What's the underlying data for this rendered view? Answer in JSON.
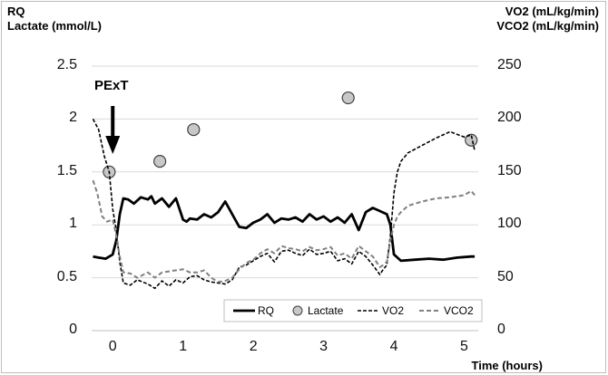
{
  "chart_data": {
    "type": "line",
    "left_axis_label_lines": [
      "RQ",
      "Lactate (mmol/L)"
    ],
    "right_axis_label_lines": [
      "VO2 (mL/kg/min)",
      "VCO2 (mL/kg/min)"
    ],
    "xlabel": "Time (hours)",
    "annotation": "PExT",
    "annotation_x": 0,
    "xlim": [
      -0.3,
      5.2
    ],
    "ylim_left": [
      0,
      2.5
    ],
    "ylim_right": [
      0,
      250
    ],
    "x_ticks": [
      "0",
      "1",
      "2",
      "3",
      "4",
      "5"
    ],
    "y_left_ticks": [
      "0",
      "0.5",
      "1",
      "1.5",
      "2",
      "2.5"
    ],
    "y_right_ticks": [
      "0",
      "50",
      "100",
      "150",
      "200",
      "250"
    ],
    "grid": "horizontal",
    "legend": "bottom-right",
    "series": [
      {
        "name": "RQ",
        "axis": "left",
        "style": "solid",
        "color": "#000000",
        "x": [
          -0.28,
          -0.2,
          -0.1,
          0,
          0.05,
          0.1,
          0.15,
          0.22,
          0.3,
          0.4,
          0.5,
          0.55,
          0.6,
          0.7,
          0.8,
          0.9,
          1.0,
          1.05,
          1.1,
          1.2,
          1.3,
          1.4,
          1.5,
          1.6,
          1.7,
          1.8,
          1.9,
          2.0,
          2.1,
          2.2,
          2.3,
          2.4,
          2.5,
          2.6,
          2.7,
          2.8,
          2.9,
          3.0,
          3.1,
          3.2,
          3.3,
          3.4,
          3.5,
          3.6,
          3.7,
          3.8,
          3.9,
          3.95,
          4.0,
          4.1,
          4.3,
          4.5,
          4.7,
          4.9,
          5.1,
          5.15
        ],
        "y": [
          0.7,
          0.69,
          0.68,
          0.72,
          0.85,
          1.1,
          1.25,
          1.24,
          1.2,
          1.26,
          1.24,
          1.27,
          1.2,
          1.25,
          1.17,
          1.25,
          1.05,
          1.03,
          1.06,
          1.05,
          1.1,
          1.07,
          1.12,
          1.22,
          1.1,
          0.98,
          0.97,
          1.02,
          1.05,
          1.1,
          1.02,
          1.06,
          1.05,
          1.07,
          1.03,
          1.1,
          1.05,
          1.08,
          1.03,
          1.07,
          1.02,
          1.1,
          0.95,
          1.12,
          1.16,
          1.13,
          1.1,
          1.0,
          0.72,
          0.66,
          0.67,
          0.68,
          0.67,
          0.69,
          0.7,
          0.7
        ]
      },
      {
        "name": "Lactate",
        "axis": "left",
        "style": "marker",
        "color": "#c8c8c8",
        "x": [
          -0.05,
          0.67,
          1.15,
          3.35,
          5.1
        ],
        "y": [
          1.5,
          1.6,
          1.9,
          2.2,
          1.8
        ]
      },
      {
        "name": "VO2",
        "axis": "right",
        "style": "dashed",
        "color": "#000000",
        "x": [
          -0.28,
          -0.2,
          -0.12,
          -0.05,
          0,
          0.05,
          0.1,
          0.15,
          0.25,
          0.35,
          0.5,
          0.6,
          0.7,
          0.8,
          0.9,
          1.0,
          1.1,
          1.2,
          1.3,
          1.4,
          1.5,
          1.6,
          1.7,
          1.8,
          1.9,
          2.0,
          2.1,
          2.2,
          2.3,
          2.4,
          2.5,
          2.6,
          2.7,
          2.8,
          2.9,
          3.0,
          3.1,
          3.2,
          3.3,
          3.4,
          3.5,
          3.6,
          3.7,
          3.8,
          3.85,
          3.9,
          3.95,
          4.0,
          4.05,
          4.1,
          4.2,
          4.4,
          4.6,
          4.8,
          5.0,
          5.1,
          5.15
        ],
        "y": [
          200,
          190,
          165,
          150,
          115,
          95,
          65,
          45,
          43,
          48,
          44,
          40,
          47,
          42,
          48,
          45,
          51,
          52,
          48,
          46,
          45,
          44,
          48,
          60,
          62,
          66,
          70,
          73,
          65,
          75,
          76,
          73,
          71,
          77,
          72,
          73,
          75,
          66,
          68,
          63,
          75,
          70,
          62,
          53,
          58,
          62,
          90,
          130,
          150,
          160,
          168,
          175,
          182,
          188,
          183,
          185,
          170
        ]
      },
      {
        "name": "VCO2",
        "axis": "right",
        "style": "dashed",
        "color": "#808080",
        "x": [
          -0.28,
          -0.22,
          -0.15,
          -0.08,
          0,
          0.05,
          0.1,
          0.15,
          0.25,
          0.35,
          0.5,
          0.6,
          0.7,
          0.8,
          0.9,
          1.0,
          1.1,
          1.2,
          1.3,
          1.4,
          1.5,
          1.6,
          1.7,
          1.8,
          1.9,
          2.0,
          2.1,
          2.2,
          2.3,
          2.4,
          2.5,
          2.6,
          2.7,
          2.8,
          2.9,
          3.0,
          3.1,
          3.2,
          3.3,
          3.4,
          3.5,
          3.6,
          3.7,
          3.8,
          3.85,
          3.9,
          3.95,
          4.0,
          4.05,
          4.1,
          4.2,
          4.4,
          4.6,
          4.8,
          5.0,
          5.1,
          5.15
        ],
        "y": [
          142,
          130,
          108,
          103,
          105,
          90,
          70,
          55,
          54,
          50,
          55,
          50,
          55,
          56,
          57,
          58,
          55,
          55,
          57,
          50,
          46,
          47,
          50,
          58,
          64,
          67,
          73,
          77,
          73,
          80,
          78,
          77,
          75,
          79,
          76,
          77,
          79,
          71,
          73,
          68,
          80,
          75,
          70,
          60,
          62,
          65,
          85,
          100,
          108,
          112,
          118,
          122,
          125,
          126,
          128,
          132,
          128
        ]
      }
    ]
  }
}
